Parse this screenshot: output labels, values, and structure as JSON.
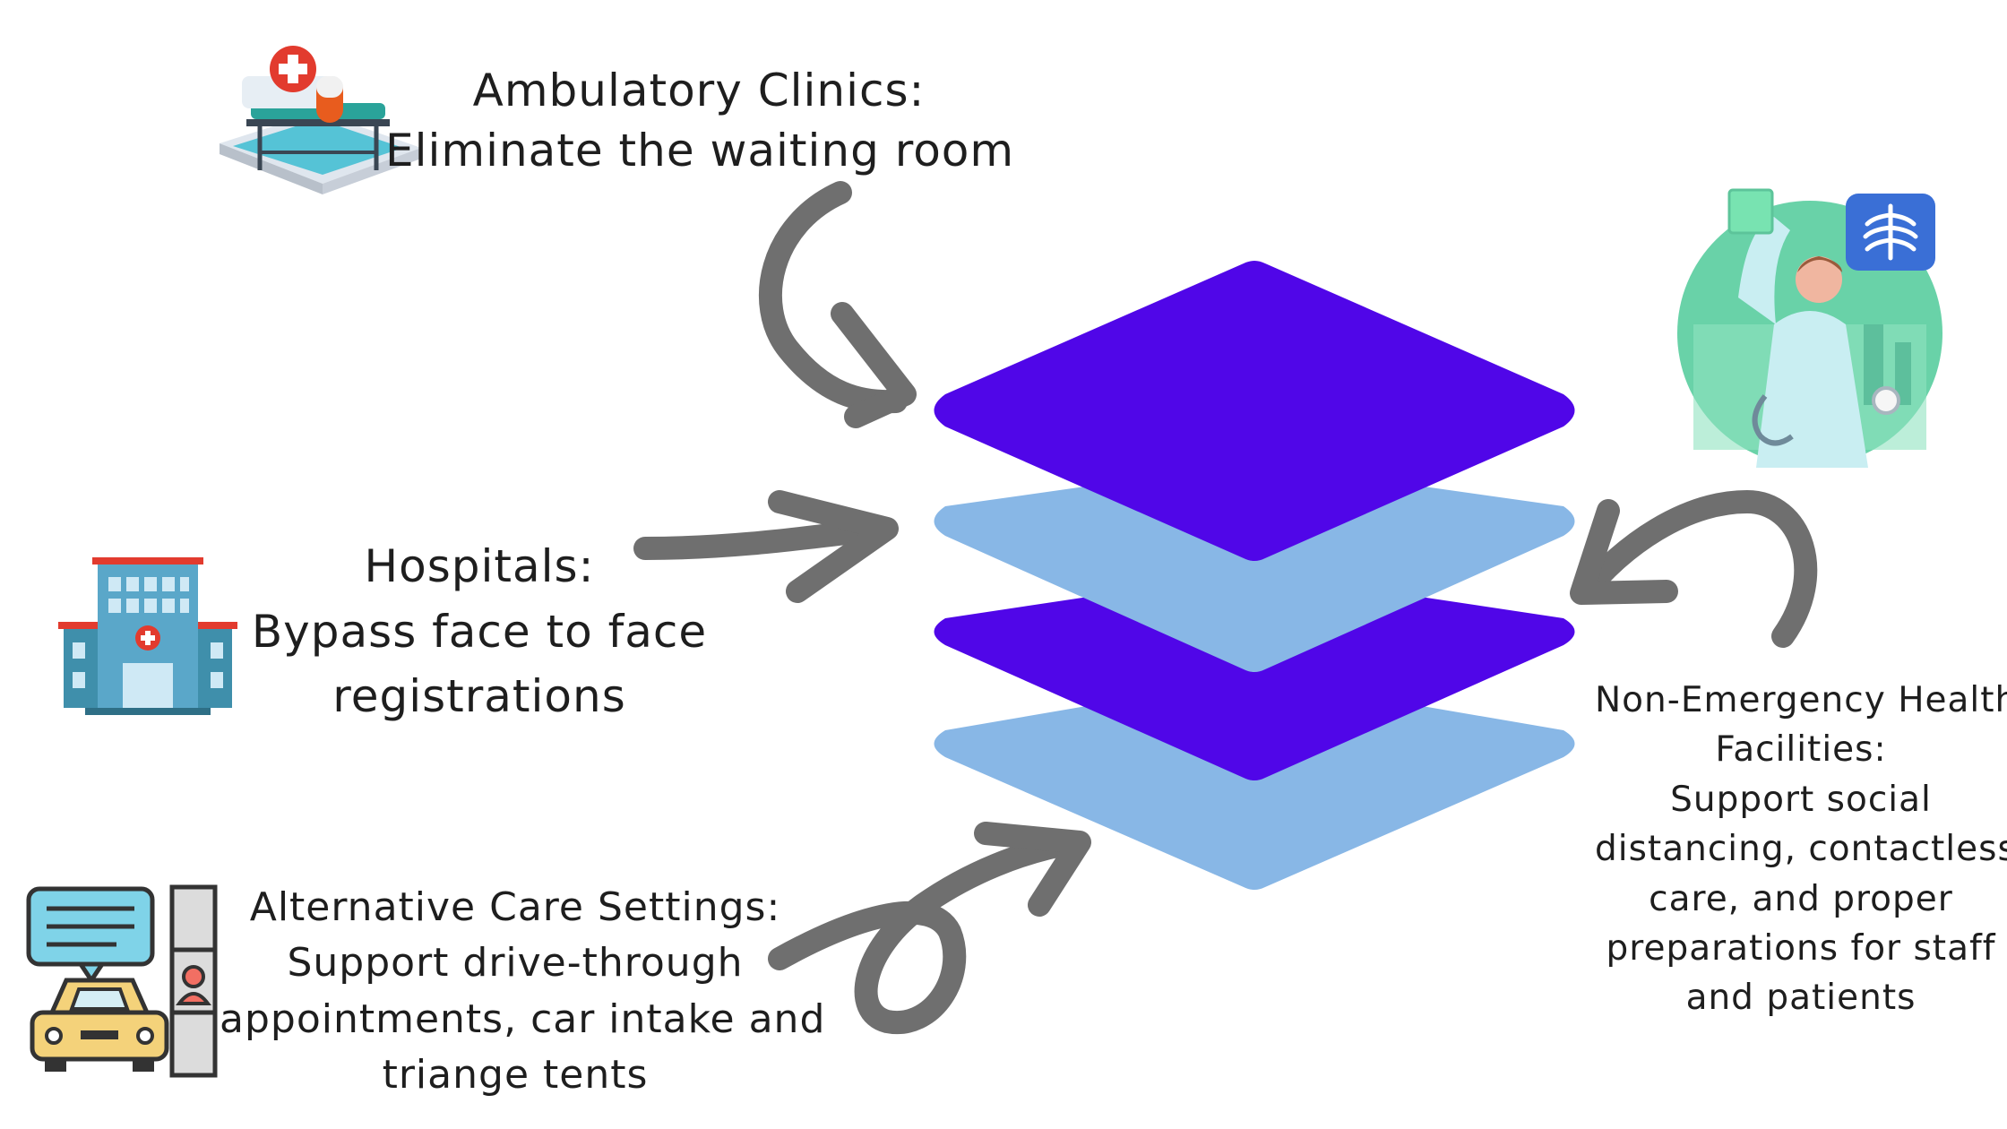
{
  "labels": {
    "ambulatory": {
      "title": "Ambulatory Clinics:",
      "line1": "Eliminate the waiting room"
    },
    "hospitals": {
      "title": "Hospitals:",
      "line1": "Bypass face to face",
      "line2": "registrations"
    },
    "alternative": {
      "title": "Alternative Care Settings:",
      "line1": "Support drive-through",
      "line2": "appointments, car intake and",
      "line3": "triange tents"
    },
    "nonemergency": {
      "title1": "Non-Emergency Health",
      "title2": "Facilities:",
      "line1": "Support social",
      "line2": "distancing, contactless",
      "line3": "care, and proper",
      "line4": "preparations for staff",
      "line5": "and patients"
    }
  },
  "colors": {
    "layer_dark": "#5006e8",
    "layer_light": "#88b7e6",
    "arrow": "#6f6f6f"
  },
  "icons": [
    "clinic-bed-phone-icon",
    "hospital-building-icon",
    "drive-through-car-icon",
    "doctor-xray-icon"
  ]
}
